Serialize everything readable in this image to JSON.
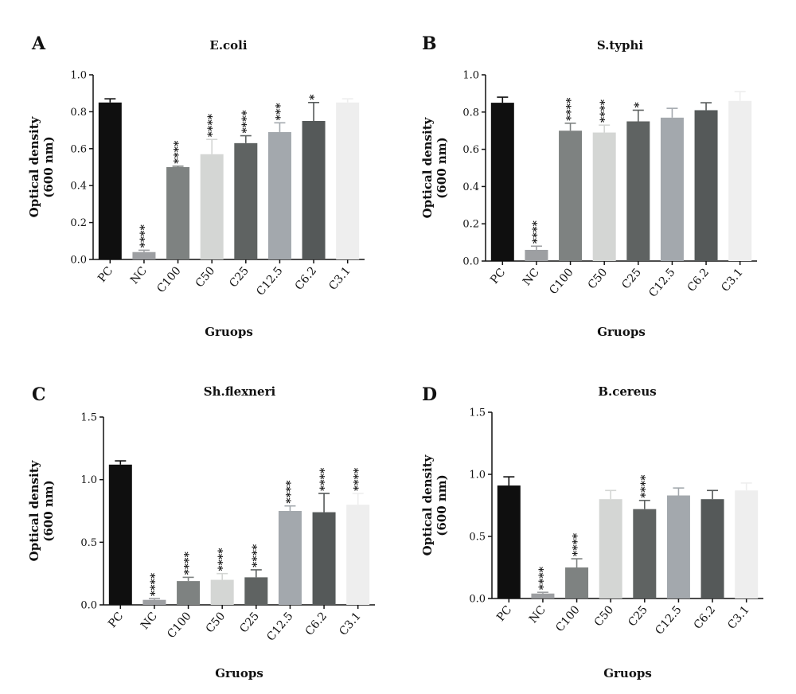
{
  "chart_data": [
    {
      "type": "bar",
      "panel": "A",
      "title": "E.coli",
      "xlabel": "Gruops",
      "ylabel": [
        "Optical density",
        "(600 nm)"
      ],
      "ylim": [
        0,
        1.0
      ],
      "yticks": [
        0.0,
        0.2,
        0.4,
        0.6,
        0.8,
        1.0
      ],
      "ytick_labels": [
        "0.0",
        "0.2",
        "0.4",
        "0.6",
        "0.8",
        "1.0"
      ],
      "categories": [
        "PC",
        "NC",
        "C100",
        "C50",
        "C25",
        "C12.5",
        "C6.2",
        "C3.1"
      ],
      "values": [
        0.85,
        0.04,
        0.5,
        0.57,
        0.63,
        0.69,
        0.75,
        0.85
      ],
      "errors": [
        0.02,
        0.01,
        0.005,
        0.08,
        0.04,
        0.05,
        0.1,
        0.02
      ],
      "significance": [
        "",
        "****",
        "****",
        "****",
        "****",
        "***",
        "*",
        ""
      ],
      "colors": [
        "#0f0f0f",
        "#9d9fa2",
        "#7e8281",
        "#d4d6d4",
        "#5f6362",
        "#a3a8ad",
        "#555959",
        "#eeeeee"
      ]
    },
    {
      "type": "bar",
      "panel": "B",
      "title": "S.typhi",
      "xlabel": "Gruops",
      "ylabel": [
        "Optical density",
        "(600 nm)"
      ],
      "ylim": [
        0,
        1.0
      ],
      "yticks": [
        0.0,
        0.2,
        0.4,
        0.6,
        0.8,
        1.0
      ],
      "ytick_labels": [
        "0.0",
        "0.2",
        "0.4",
        "0.6",
        "0.8",
        "1.0"
      ],
      "categories": [
        "PC",
        "NC",
        "C100",
        "C50",
        "C25",
        "C12.5",
        "C6.2",
        "C3.1"
      ],
      "values": [
        0.85,
        0.06,
        0.7,
        0.69,
        0.75,
        0.77,
        0.81,
        0.86
      ],
      "errors": [
        0.03,
        0.02,
        0.04,
        0.04,
        0.06,
        0.05,
        0.04,
        0.05
      ],
      "significance": [
        "",
        "****",
        "****",
        "****",
        "*",
        "",
        "",
        ""
      ],
      "colors": [
        "#0f0f0f",
        "#9d9fa2",
        "#7e8281",
        "#d4d6d4",
        "#5f6362",
        "#a3a8ad",
        "#555959",
        "#eeeeee"
      ]
    },
    {
      "type": "bar",
      "panel": "C",
      "title": "Sh.flexneri",
      "xlabel": "Gruops",
      "ylabel": [
        "Optical density",
        "(600 nm)"
      ],
      "ylim": [
        0,
        1.5
      ],
      "yticks": [
        0.0,
        0.5,
        1.0,
        1.5
      ],
      "ytick_labels": [
        "0.0",
        "0.5",
        "1.0",
        "1.5"
      ],
      "categories": [
        "PC",
        "NC",
        "C100",
        "C50",
        "C25",
        "C12.5",
        "C6.2",
        "C3.1"
      ],
      "values": [
        1.12,
        0.04,
        0.19,
        0.2,
        0.22,
        0.75,
        0.74,
        0.8
      ],
      "errors": [
        0.03,
        0.01,
        0.03,
        0.05,
        0.06,
        0.04,
        0.15,
        0.09
      ],
      "significance": [
        "",
        "****",
        "****",
        "****",
        "****",
        "****",
        "****",
        "****"
      ],
      "colors": [
        "#0f0f0f",
        "#9d9fa2",
        "#7e8281",
        "#d4d6d4",
        "#5f6362",
        "#a3a8ad",
        "#555959",
        "#eeeeee"
      ]
    },
    {
      "type": "bar",
      "panel": "D",
      "title": "B.cereus",
      "xlabel": "Gruops",
      "ylabel": [
        "Optical density",
        "(600 nm)"
      ],
      "ylim": [
        0,
        1.5
      ],
      "yticks": [
        0.0,
        0.5,
        1.0,
        1.5
      ],
      "ytick_labels": [
        "0.0",
        "0.5",
        "1.0",
        "1.5"
      ],
      "categories": [
        "PC",
        "NC",
        "C100",
        "C50",
        "C25",
        "C12.5",
        "C6.2",
        "C3.1"
      ],
      "values": [
        0.91,
        0.04,
        0.25,
        0.8,
        0.72,
        0.83,
        0.8,
        0.87
      ],
      "errors": [
        0.07,
        0.01,
        0.07,
        0.07,
        0.07,
        0.06,
        0.07,
        0.06
      ],
      "significance": [
        "",
        "****",
        "****",
        "",
        "****",
        "",
        "",
        ""
      ],
      "colors": [
        "#0f0f0f",
        "#9d9fa2",
        "#7e8281",
        "#d4d6d4",
        "#5f6362",
        "#a3a8ad",
        "#555959",
        "#eeeeee"
      ]
    }
  ]
}
